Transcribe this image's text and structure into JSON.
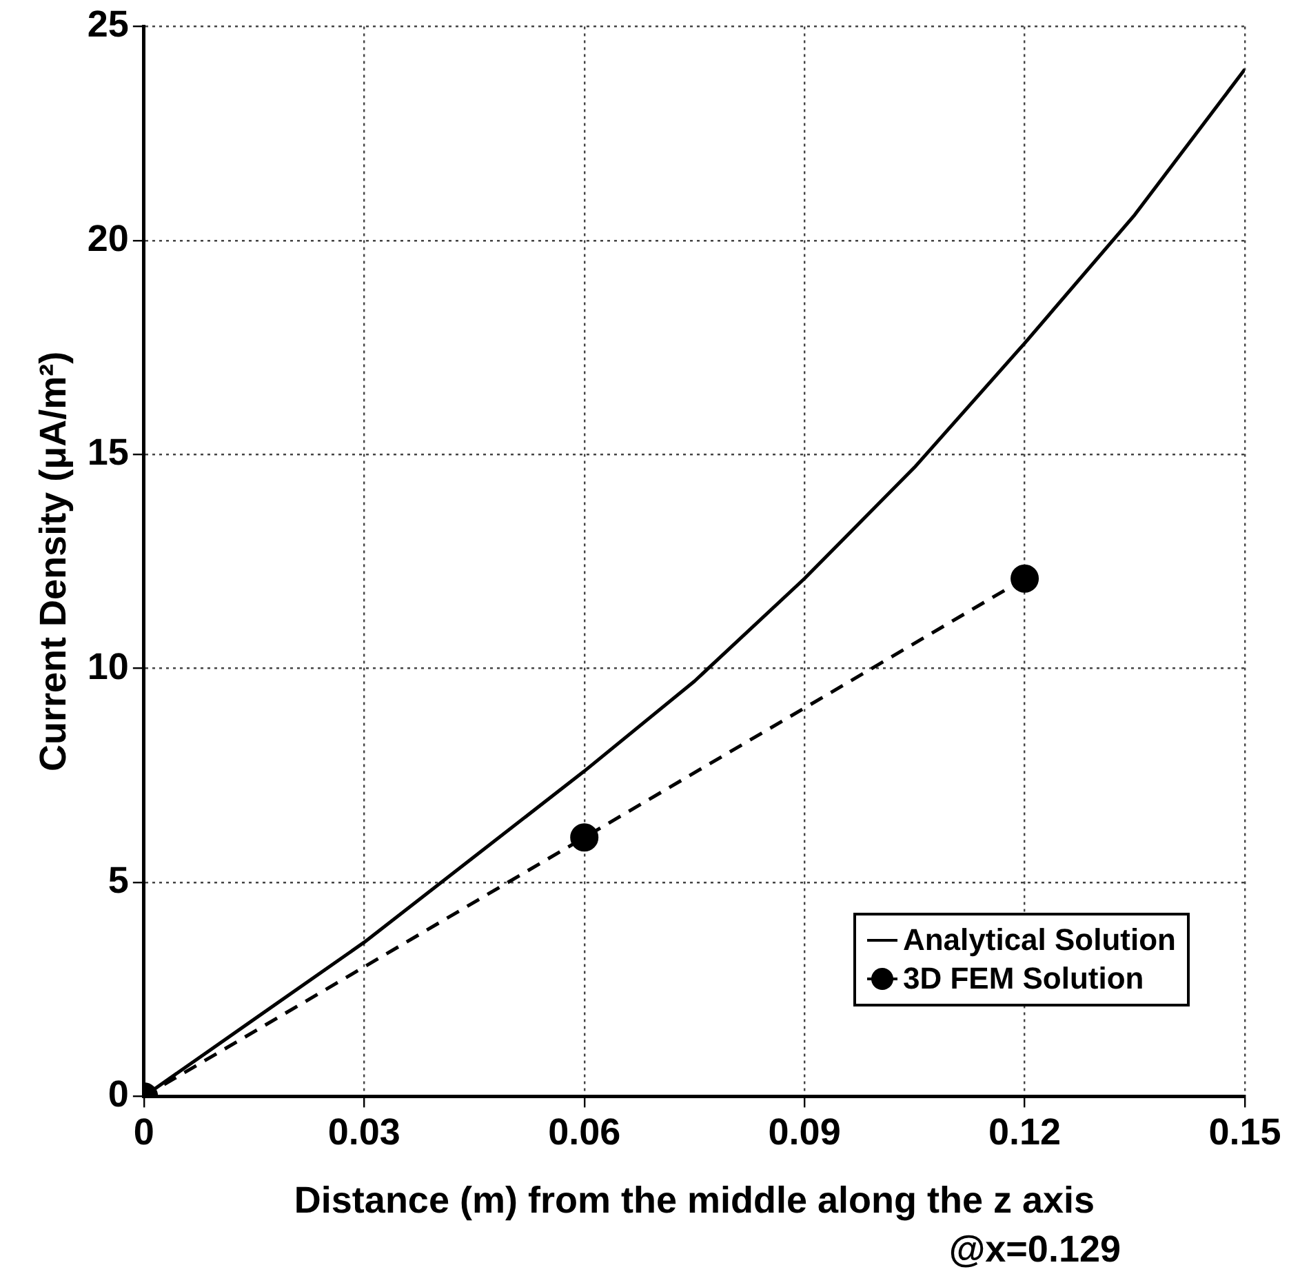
{
  "chart_data": {
    "type": "line",
    "xlabel": "Distance (m) from the middle along the z axis",
    "ylabel": "Current Density (μA/m²)",
    "annotations": [
      "@x=0.129"
    ],
    "xlim": [
      0,
      0.15
    ],
    "xticks": [
      0,
      0.03,
      0.06,
      0.09,
      0.12,
      0.15
    ],
    "ylim": [
      0,
      25
    ],
    "yticks": [
      0,
      5,
      10,
      15,
      20,
      25
    ],
    "grid": true,
    "legend": "bottom right",
    "series": [
      {
        "name": "Analytical Solution",
        "color": "#000000",
        "x": [
          0,
          0.015,
          0.03,
          0.045,
          0.06,
          0.075,
          0.09,
          0.105,
          0.12,
          0.135,
          0.15
        ],
        "values": [
          0,
          1.8,
          3.6,
          5.6,
          7.6,
          9.7,
          12.1,
          14.7,
          17.6,
          20.6,
          24.0
        ],
        "marker": "none",
        "line_style": "solid"
      },
      {
        "name": "3D FEM Solution",
        "color": "#000000",
        "x": [
          0,
          0.06,
          0.12
        ],
        "values": [
          0,
          6.05,
          12.1
        ],
        "marker": "circle",
        "line_style": "dashed"
      }
    ]
  }
}
